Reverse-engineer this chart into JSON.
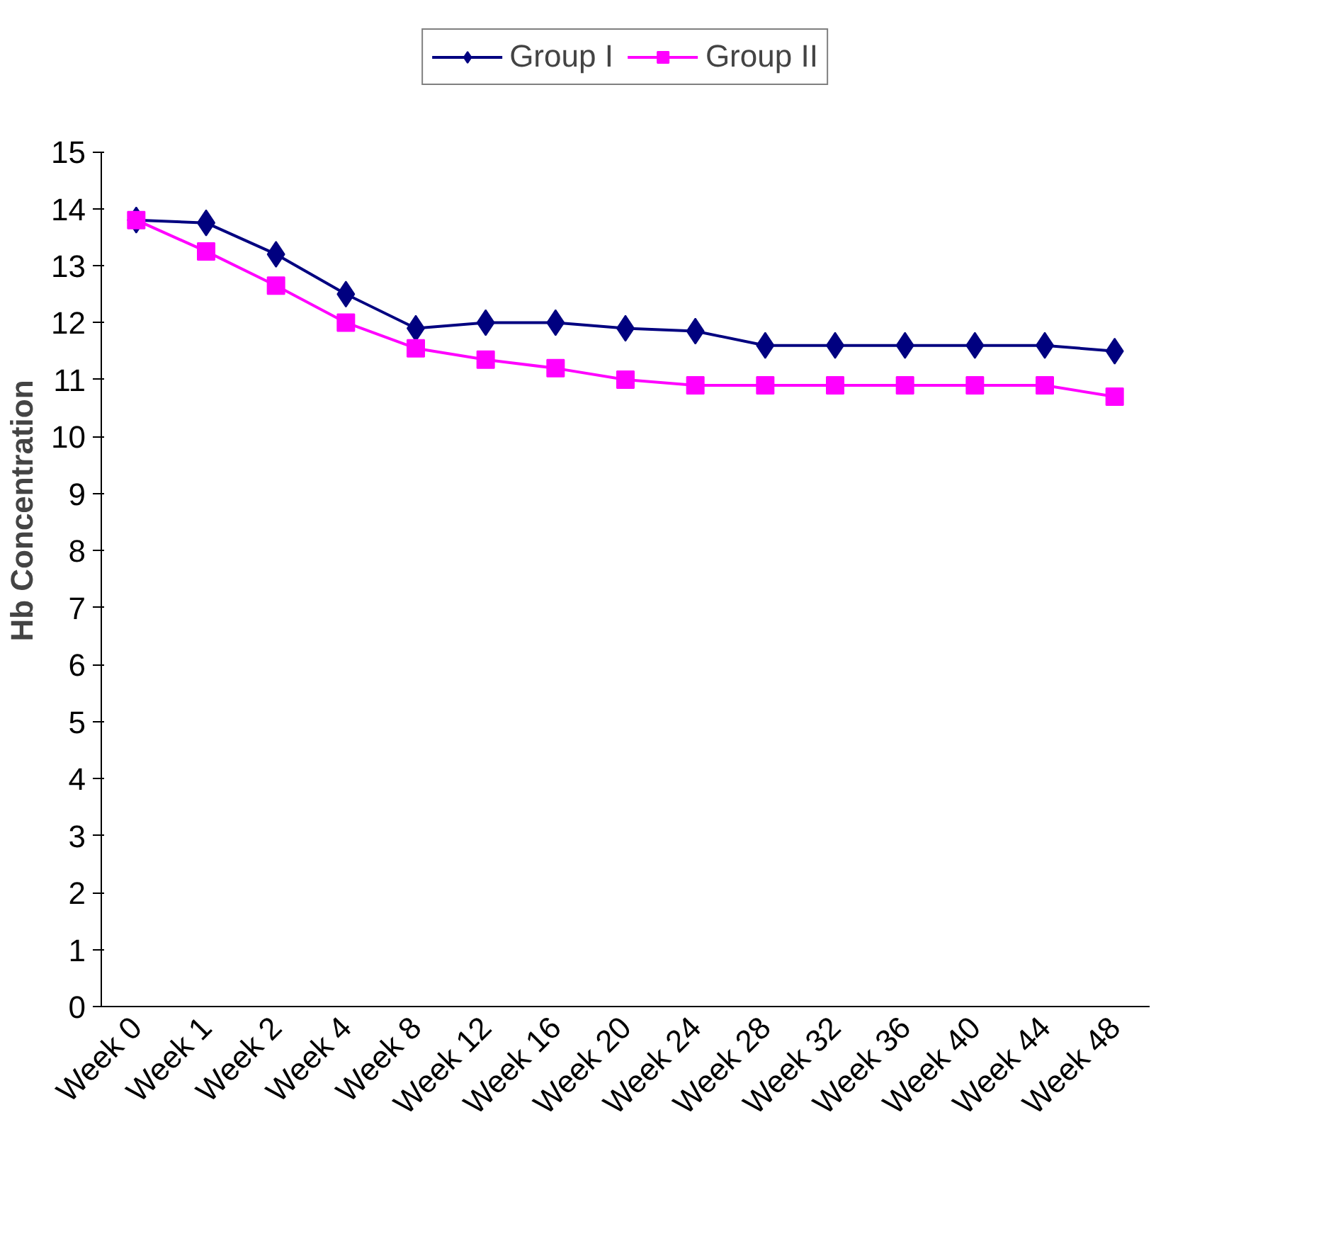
{
  "chart_data": {
    "type": "line",
    "ylabel": "Hb Concentration",
    "categories": [
      "Week 0",
      "Week 1",
      "Week 2",
      "Week 4",
      "Week 8",
      "Week 12",
      "Week 16",
      "Week 20",
      "Week 24",
      "Week 28",
      "Week 32",
      "Week 36",
      "Week 40",
      "Week 44",
      "Week 48"
    ],
    "series": [
      {
        "name": "Group I",
        "color": "#000080",
        "marker": "diamond",
        "values": [
          13.8,
          13.75,
          13.2,
          12.5,
          11.9,
          12.0,
          12.0,
          11.9,
          11.85,
          11.6,
          11.6,
          11.6,
          11.6,
          11.6,
          11.5
        ]
      },
      {
        "name": "Group II",
        "color": "#ff00ff",
        "marker": "square",
        "values": [
          13.8,
          13.25,
          12.65,
          12.0,
          11.55,
          11.35,
          11.2,
          11.0,
          10.9,
          10.9,
          10.9,
          10.9,
          10.9,
          10.9,
          10.7
        ]
      }
    ],
    "ylim": [
      0,
      15
    ],
    "yticks": [
      0,
      1,
      2,
      3,
      4,
      5,
      6,
      7,
      8,
      9,
      10,
      11,
      12,
      13,
      14,
      15
    ],
    "grid": false,
    "legend": "top",
    "line_style": "solid"
  }
}
